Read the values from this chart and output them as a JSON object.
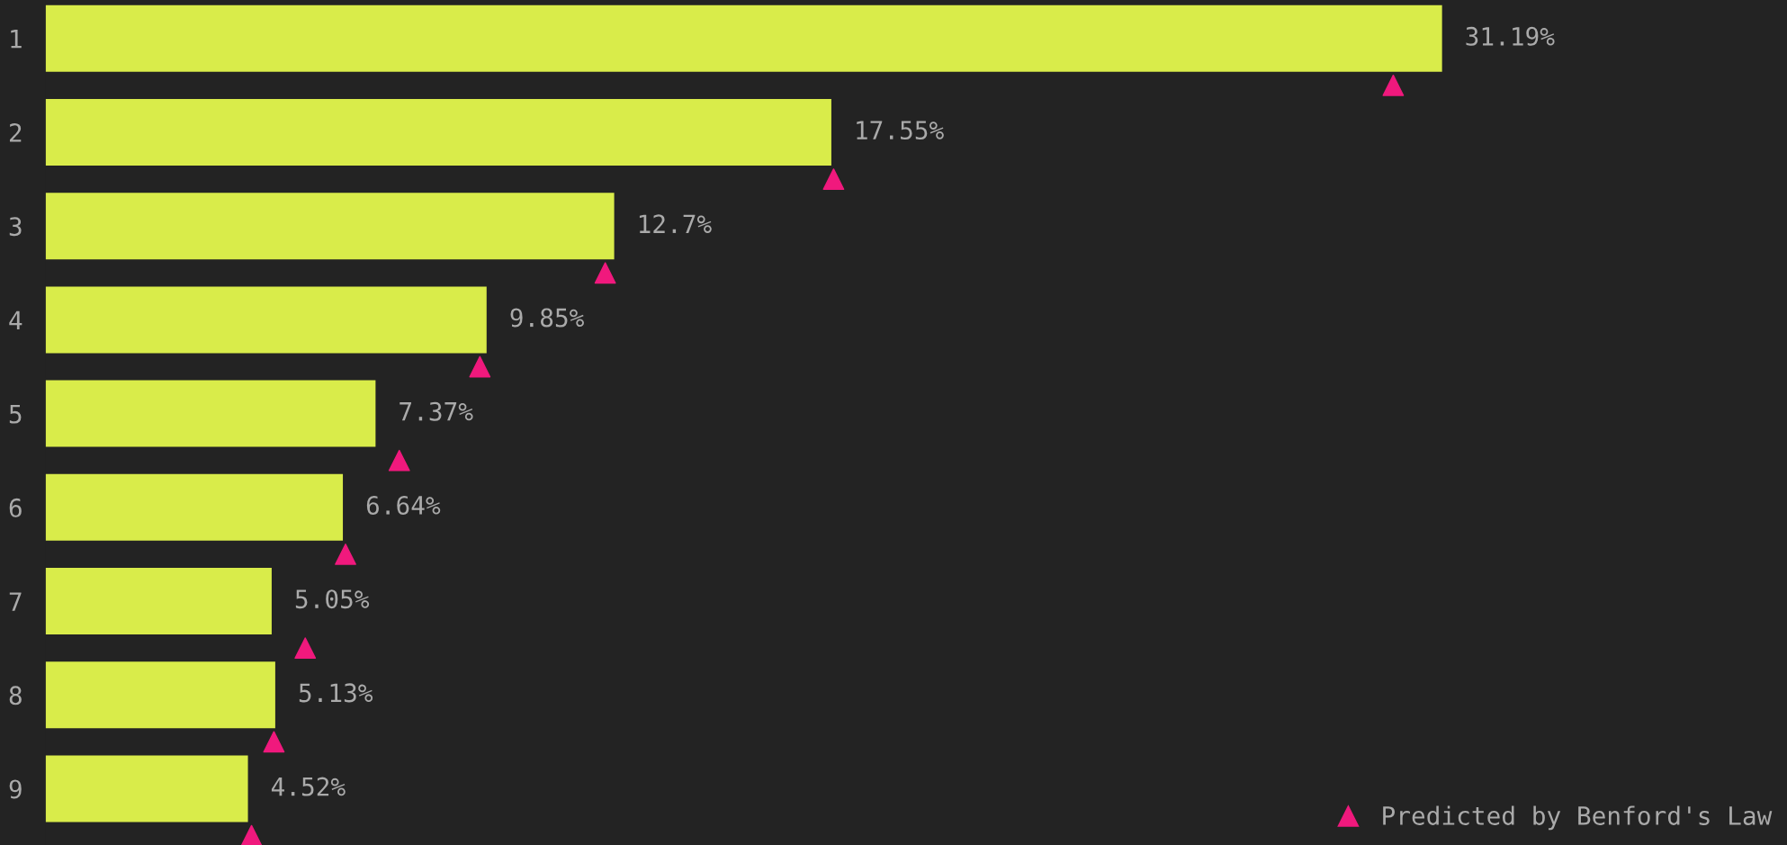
{
  "chart_data": {
    "type": "bar",
    "orientation": "horizontal",
    "categories": [
      "1",
      "2",
      "3",
      "4",
      "5",
      "6",
      "7",
      "8",
      "9"
    ],
    "series": [
      {
        "color": "#d9ec4a",
        "values": [
          31.19,
          17.55,
          12.7,
          9.85,
          7.37,
          6.64,
          5.05,
          5.13,
          4.52
        ],
        "value_labels": [
          "31.19%",
          "17.55%",
          "12.7%",
          "9.85%",
          "7.37%",
          "6.64%",
          "5.05%",
          "5.13%",
          "4.52%"
        ]
      },
      {
        "type": "scatter",
        "name": "Predicted by Benford's Law",
        "color": "#f0197d",
        "marker": "triangle",
        "values": [
          30.1,
          17.6,
          12.5,
          9.7,
          7.9,
          6.7,
          5.8,
          5.1,
          4.6
        ]
      }
    ],
    "legend": "bottom right",
    "grid": false
  }
}
